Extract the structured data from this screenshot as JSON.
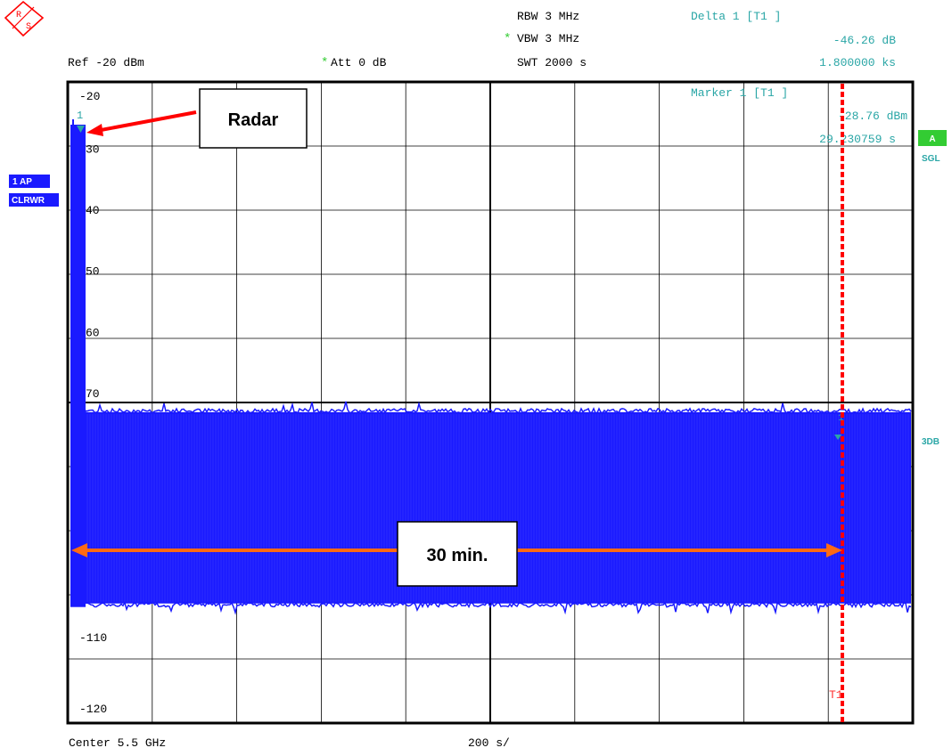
{
  "header": {
    "rbw": "RBW  3 MHz",
    "vbw": "VBW  3 MHz",
    "vbw_marker": "*",
    "swt": "SWT  2000 s",
    "ref": "Ref  -20 dBm",
    "att": "Att    0 dB",
    "att_marker": "*",
    "delta_title": "Delta 1 [T1 ]",
    "delta_value": "-46.26 dB",
    "delta_time": "1.800000 ks"
  },
  "marker": {
    "title": "Marker 1 [T1 ]",
    "value": "-28.76 dBm",
    "time": "29.230759 s",
    "label_1": "1",
    "label_t1": "T1",
    "label_delta": "1"
  },
  "left_panel": {
    "trace_badge": "1 AP",
    "mode_badge": "CLRWR"
  },
  "right_panel": {
    "a_badge": "A",
    "sgl": "SGL",
    "three_db": "3DB"
  },
  "footer": {
    "center": "Center 5.5 GHz",
    "span": "200 s/"
  },
  "annotations": {
    "radar": "Radar",
    "duration": "30 min."
  },
  "colors": {
    "trace": "#1a1aff",
    "marker_text": "#2aa6a6",
    "annotation_line": "#ff0000",
    "duration_arrow": "#ff6a13",
    "badge_bg": "#1a1aff",
    "a_badge_bg": "#33cc33"
  },
  "chart_data": {
    "type": "line",
    "xlabel": "",
    "ylabel": "",
    "x_unit": "s",
    "y_unit": "dBm",
    "xlim": [
      0,
      2000
    ],
    "ylim": [
      -125,
      -20
    ],
    "y_ticks": [
      -20,
      -30,
      -40,
      -50,
      -60,
      -70,
      -110,
      -120
    ],
    "y_tick_labels": [
      "-20",
      "30",
      "40",
      "50",
      "60",
      "70",
      "-110",
      "-120"
    ],
    "grid": true,
    "series": [
      {
        "points": [
          {
            "x": 0,
            "y": -27
          },
          {
            "x": 29.23,
            "y": -28.76
          },
          {
            "x": 40,
            "y": -105
          },
          {
            "x": 60,
            "y": -74
          },
          {
            "x": 1000,
            "y": -74
          },
          {
            "x": 1829.23,
            "y": -75
          },
          {
            "x": 2000,
            "y": -74
          }
        ],
        "noise_ceiling": -73.5,
        "noise_floor": -106
      }
    ],
    "markers": [
      {
        "name": "1",
        "x": 29.23,
        "y": -28.76
      },
      {
        "name": "T1",
        "x": 1829.23,
        "y": -75
      }
    ]
  }
}
